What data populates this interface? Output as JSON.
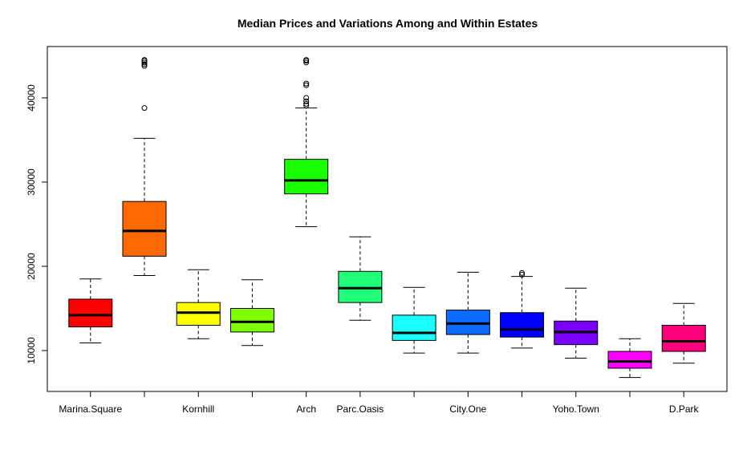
{
  "chart_data": {
    "type": "box",
    "title": "Median Prices and Variations Among and Within Estates",
    "xlabel": "",
    "ylabel": "",
    "ylim": [
      5000,
      45000
    ],
    "y_ticks": [
      10000,
      20000,
      30000,
      40000
    ],
    "x_tick_labels_shown": [
      "Marina.Square",
      "",
      "Kornhill",
      "",
      "Arch",
      "Parc.Oasis",
      "",
      "City.One",
      "",
      "Yoho.Town",
      "",
      "D.Park"
    ],
    "boxes": [
      {
        "label": "Marina.Square",
        "color": "#FF0000",
        "whisker_low": 10900,
        "q1": 12800,
        "median": 14200,
        "q3": 16100,
        "whisker_high": 18500,
        "outliers": []
      },
      {
        "label": "",
        "color": "#FF6A00",
        "whisker_low": 18900,
        "q1": 21200,
        "median": 24200,
        "q3": 27700,
        "whisker_high": 35200,
        "outliers": [
          38800,
          43800,
          44000,
          44200,
          44400,
          44500
        ]
      },
      {
        "label": "Kornhill",
        "color": "#FFFF00",
        "whisker_low": 11400,
        "q1": 13000,
        "median": 14500,
        "q3": 15700,
        "whisker_high": 19600,
        "outliers": []
      },
      {
        "label": "",
        "color": "#80FF00",
        "whisker_low": 10600,
        "q1": 12200,
        "median": 13400,
        "q3": 15000,
        "whisker_high": 18400,
        "outliers": []
      },
      {
        "label": "Arch",
        "color": "#1AFF00",
        "whisker_low": 24700,
        "q1": 28600,
        "median": 30200,
        "q3": 32700,
        "whisker_high": 38800,
        "outliers": [
          39100,
          39300,
          39600,
          40000,
          41500,
          41700,
          44200,
          44400,
          44500
        ]
      },
      {
        "label": "Parc.Oasis",
        "color": "#20FF7A",
        "whisker_low": 13600,
        "q1": 15700,
        "median": 17400,
        "q3": 19400,
        "whisker_high": 23500,
        "outliers": []
      },
      {
        "label": "",
        "color": "#1AFFFF",
        "whisker_low": 9700,
        "q1": 11200,
        "median": 12100,
        "q3": 14200,
        "whisker_high": 17500,
        "outliers": []
      },
      {
        "label": "City.One",
        "color": "#0C6CFF",
        "whisker_low": 9700,
        "q1": 11900,
        "median": 13200,
        "q3": 14800,
        "whisker_high": 19300,
        "outliers": []
      },
      {
        "label": "",
        "color": "#0000FF",
        "whisker_low": 10300,
        "q1": 11600,
        "median": 12500,
        "q3": 14500,
        "whisker_high": 18800,
        "outliers": [
          19000,
          19200
        ]
      },
      {
        "label": "Yoho.Town",
        "color": "#7A00FF",
        "whisker_low": 9100,
        "q1": 10700,
        "median": 12200,
        "q3": 13500,
        "whisker_high": 17400,
        "outliers": []
      },
      {
        "label": "",
        "color": "#FF00FF",
        "whisker_low": 6800,
        "q1": 7900,
        "median": 8700,
        "q3": 9900,
        "whisker_high": 11400,
        "outliers": []
      },
      {
        "label": "D.Park",
        "color": "#FF007A",
        "whisker_low": 8500,
        "q1": 9900,
        "median": 11100,
        "q3": 13000,
        "whisker_high": 15600,
        "outliers": []
      }
    ],
    "grid": false,
    "legend": "none"
  }
}
